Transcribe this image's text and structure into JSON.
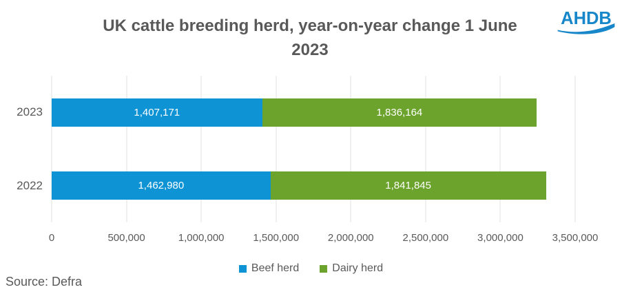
{
  "header": {
    "title_line1": "UK cattle breeding herd, year-on-year change 1 June",
    "title_line2": "2023",
    "logo_text": "AHDB"
  },
  "footer": {
    "source": "Source: Defra"
  },
  "colors": {
    "beef_blue": "#0E93D5",
    "dairy_green": "#6BA32C",
    "logo_blue": "#1787C9",
    "text_gray": "#595959",
    "gridline": "#E2E2E2"
  },
  "chart_data": {
    "type": "bar",
    "orientation": "horizontal",
    "stacked": true,
    "title": "UK cattle breeding herd, year-on-year change 1 June 2023",
    "categories": [
      "2023",
      "2022"
    ],
    "series": [
      {
        "name": "Beef herd",
        "color": "#0E93D5",
        "values": [
          1407171,
          1462980
        ],
        "labels": [
          "1,407,171",
          "1,462,980"
        ]
      },
      {
        "name": "Dairy herd",
        "color": "#6BA32C",
        "values": [
          1836164,
          1841845
        ],
        "labels": [
          "1,836,164",
          "1,841,845"
        ]
      }
    ],
    "xlim": [
      0,
      3500000
    ],
    "xticks": [
      0,
      500000,
      1000000,
      1500000,
      2000000,
      2500000,
      3000000,
      3500000
    ],
    "xtick_labels": [
      "0",
      "500,000",
      "1,000,000",
      "1,500,000",
      "2,000,000",
      "2,500,000",
      "3,000,000",
      "3,500,000"
    ],
    "grid": "vertical",
    "legend_position": "bottom-center"
  }
}
